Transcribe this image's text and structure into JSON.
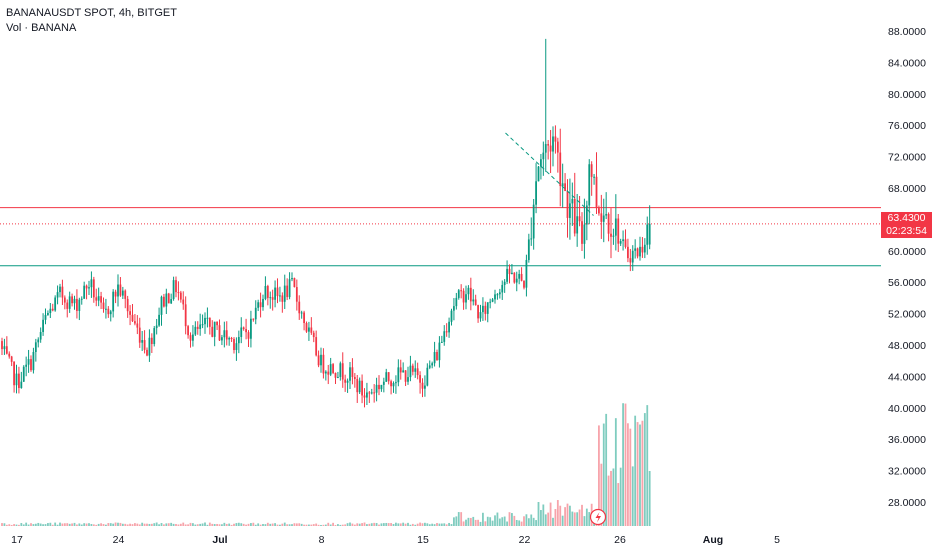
{
  "header": {
    "title": "BANANAUSDT SPOT, 4h, BITGET",
    "subtitle": "Vol · BANANA"
  },
  "price_tag": {
    "price": "63.4300",
    "countdown": "02:23:54",
    "color": "#f23645"
  },
  "colors": {
    "up": "#089981",
    "down": "#f23645",
    "up_volume": "#7fccbf",
    "down_volume": "#f7a3aa",
    "resistance": "#f23645",
    "support": "#089981",
    "trendline": "#089981"
  },
  "icons": [
    "lightning-icon"
  ],
  "chart_data": {
    "type": "candlestick",
    "title": "BANANAUSDT SPOT, 4h, BITGET",
    "x_tick_labels": [
      "17",
      "24",
      "Jul",
      "8",
      "15",
      "22",
      "26",
      "Aug",
      "5"
    ],
    "y_tick_labels": [
      "88.0000",
      "84.0000",
      "80.0000",
      "76.0000",
      "72.0000",
      "68.0000",
      "64.0000",
      "60.0000",
      "56.0000",
      "52.0000",
      "48.0000",
      "44.0000",
      "40.0000",
      "36.0000",
      "32.0000",
      "28.0000"
    ],
    "ylim": [
      24.8,
      90.7
    ],
    "grid": false,
    "last_price": 63.43,
    "horizontal_lines": [
      {
        "kind": "resistance",
        "value": 65.5,
        "style": "solid"
      },
      {
        "kind": "last_price",
        "value": 63.43,
        "style": "dotted"
      },
      {
        "kind": "support",
        "value": 58.1,
        "style": "solid"
      }
    ],
    "trendline": {
      "start": {
        "date": "2024-07-20",
        "price": 75.0
      },
      "end": {
        "date": "2024-07-24",
        "price": 64.5
      },
      "style": "dashed"
    },
    "series": [
      {
        "name": "BANANA",
        "waypoints": [
          [
            "2024-06-15",
            48.5
          ],
          [
            "2024-06-16",
            47.2
          ],
          [
            "2024-06-17",
            43.2
          ],
          [
            "2024-06-18",
            46.0
          ],
          [
            "2024-06-19",
            51.5
          ],
          [
            "2024-06-20",
            54.5
          ],
          [
            "2024-06-21",
            53.0
          ],
          [
            "2024-06-22",
            56.0
          ],
          [
            "2024-06-23",
            51.5
          ],
          [
            "2024-06-24",
            55.5
          ],
          [
            "2024-06-25",
            51.0
          ],
          [
            "2024-06-26",
            47.5
          ],
          [
            "2024-06-27",
            53.5
          ],
          [
            "2024-06-28",
            55.5
          ],
          [
            "2024-06-29",
            49.0
          ],
          [
            "2024-06-30",
            50.5
          ],
          [
            "2024-07-01",
            49.5
          ],
          [
            "2024-07-02",
            48.5
          ],
          [
            "2024-07-03",
            50.0
          ],
          [
            "2024-07-04",
            55.0
          ],
          [
            "2024-07-05",
            54.0
          ],
          [
            "2024-07-06",
            55.5
          ],
          [
            "2024-07-07",
            50.0
          ],
          [
            "2024-07-08",
            45.5
          ],
          [
            "2024-07-09",
            45.0
          ],
          [
            "2024-07-10",
            44.0
          ],
          [
            "2024-07-11",
            41.5
          ],
          [
            "2024-07-12",
            43.0
          ],
          [
            "2024-07-13",
            44.0
          ],
          [
            "2024-07-14",
            44.5
          ],
          [
            "2024-07-15",
            43.5
          ],
          [
            "2024-07-16",
            47.0
          ],
          [
            "2024-07-17",
            53.0
          ],
          [
            "2024-07-18",
            55.0
          ],
          [
            "2024-07-19",
            51.5
          ],
          [
            "2024-07-20",
            55.0
          ],
          [
            "2024-07-21",
            57.0
          ],
          [
            "2024-07-22",
            56.0
          ],
          [
            "2024-07-22T20:00",
            70.0
          ],
          [
            "2024-07-23",
            71.5
          ],
          [
            "2024-07-24",
            74.5
          ],
          [
            "2024-07-25",
            66.0
          ],
          [
            "2024-07-26",
            61.0
          ],
          [
            "2024-07-26T12:00",
            72.0
          ],
          [
            "2024-07-27",
            66.0
          ],
          [
            "2024-07-28",
            64.0
          ],
          [
            "2024-07-29",
            59.5
          ],
          [
            "2024-07-30",
            60.0
          ],
          [
            "2024-07-30T16:00",
            63.43
          ]
        ]
      }
    ],
    "volume": {
      "name": "Vol · BANANA",
      "ylim": [
        0,
        3.0
      ]
    }
  }
}
